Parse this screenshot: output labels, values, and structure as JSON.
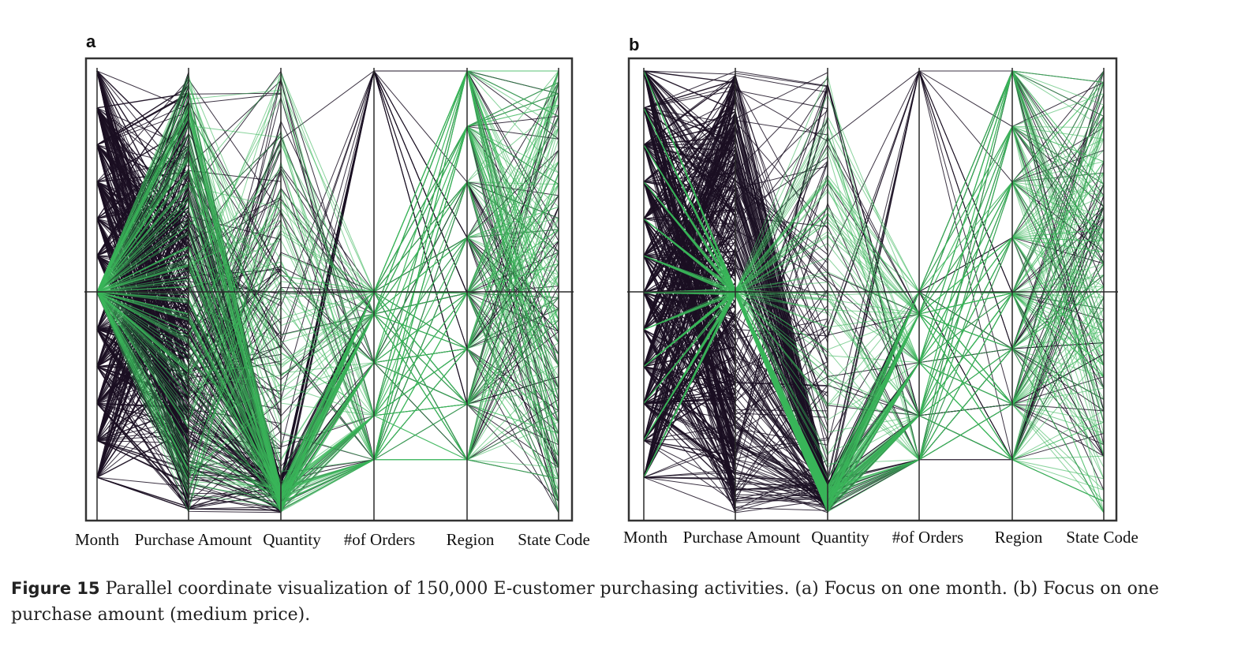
{
  "figure": {
    "panels": [
      {
        "letter": "a",
        "axes": [
          "Month",
          "Purchase Amount",
          "Quantity",
          "#of Orders",
          "Region",
          "State Code"
        ]
      },
      {
        "letter": "b",
        "axes": [
          "Month",
          "Purchase Amount",
          "Quantity",
          "#of Orders",
          "Region",
          "State Code"
        ]
      }
    ],
    "caption_label": "Figure 15",
    "caption_text": "Parallel coordinate visualization of 150,000 E-customer purchasing activities. (a) Focus on one month. (b) Focus on one purchase amount (medium price).",
    "colors": {
      "context_lines": "#1a0f22",
      "focus_lines": "#3bb55a",
      "axis": "#2a2a2a",
      "frame": "#333333"
    }
  }
}
